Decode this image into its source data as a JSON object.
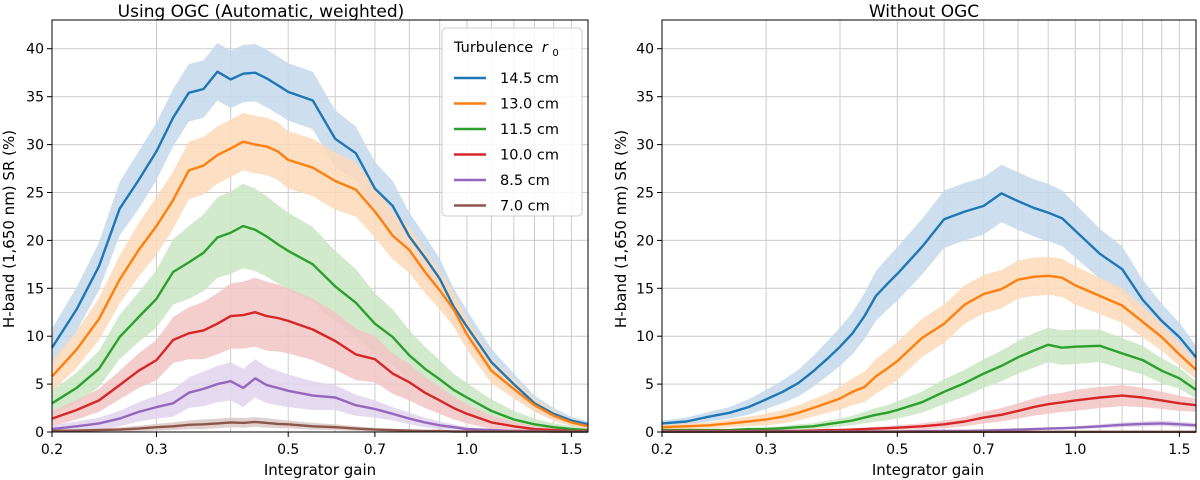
{
  "chart_data": [
    {
      "type": "line",
      "title": "Using OGC (Automatic, weighted)",
      "xlabel": "Integrator gain",
      "ylabel": "H-band (1,650 nm) SR (%)",
      "xscale": "log",
      "xlim": [
        0.2,
        1.6
      ],
      "ylim": [
        0,
        43
      ],
      "xticks": [
        0.2,
        0.3,
        0.5,
        0.7,
        1.0,
        1.5
      ],
      "xtick_labels": [
        "0.2",
        "0.3",
        "0.5",
        "0.7",
        "1.0",
        "1.5"
      ],
      "yticks": [
        0,
        5,
        10,
        15,
        20,
        25,
        30,
        35,
        40
      ],
      "ytick_labels": [
        "0",
        "5",
        "10",
        "15",
        "20",
        "25",
        "30",
        "35",
        "40"
      ],
      "grid": true,
      "shaded_band": "uncertainty range around each series",
      "legend": {
        "title": "Turbulence",
        "title_symbol": "r",
        "title_subscript": "0",
        "placement": "top-right"
      },
      "x": [
        0.2,
        0.22,
        0.24,
        0.26,
        0.28,
        0.3,
        0.32,
        0.34,
        0.36,
        0.38,
        0.4,
        0.42,
        0.44,
        0.46,
        0.48,
        0.5,
        0.55,
        0.6,
        0.65,
        0.7,
        0.75,
        0.8,
        0.85,
        0.9,
        0.95,
        1.0,
        1.1,
        1.2,
        1.3,
        1.4,
        1.5,
        1.6
      ],
      "series": [
        {
          "name": "14.5 cm",
          "color": "#1f77b4",
          "band_color": "#c4d9ec",
          "values": [
            8.8,
            12.8,
            17.3,
            23.3,
            26.3,
            29.3,
            32.8,
            35.4,
            35.8,
            37.6,
            36.8,
            37.4,
            37.5,
            36.9,
            36.2,
            35.5,
            34.6,
            30.6,
            29.1,
            25.4,
            23.6,
            20.4,
            18.2,
            16.0,
            13.1,
            11.0,
            7.3,
            5.0,
            3.0,
            1.9,
            1.2,
            0.8
          ],
          "spread": [
            2.0,
            2.3,
            2.5,
            2.8,
            3.0,
            3.0,
            3.0,
            3.0,
            3.0,
            3.0,
            3.0,
            3.0,
            3.0,
            3.0,
            3.0,
            3.0,
            3.0,
            3.0,
            2.8,
            2.8,
            2.6,
            2.5,
            2.3,
            2.1,
            1.9,
            1.7,
            1.4,
            1.1,
            0.8,
            0.6,
            0.4,
            0.3
          ]
        },
        {
          "name": "13.0 cm",
          "color": "#ff7f0e",
          "band_color": "#fdd9b8",
          "values": [
            5.8,
            8.6,
            11.8,
            15.9,
            19.0,
            21.5,
            24.2,
            27.3,
            27.8,
            28.9,
            29.6,
            30.3,
            30.0,
            29.8,
            29.3,
            28.4,
            27.6,
            26.2,
            25.3,
            23.0,
            20.5,
            19.0,
            16.7,
            14.8,
            12.8,
            10.2,
            6.4,
            4.5,
            2.8,
            1.7,
            1.0,
            0.6
          ],
          "spread": [
            1.6,
            1.9,
            2.2,
            2.5,
            2.8,
            3.0,
            3.0,
            3.0,
            3.0,
            3.0,
            3.0,
            3.0,
            3.0,
            3.0,
            3.0,
            3.0,
            3.0,
            3.0,
            2.8,
            2.7,
            2.5,
            2.4,
            2.2,
            2.0,
            1.8,
            1.6,
            1.3,
            1.0,
            0.7,
            0.5,
            0.4,
            0.3
          ]
        },
        {
          "name": "11.5 cm",
          "color": "#2ca02c",
          "band_color": "#c8e6c2",
          "values": [
            3.0,
            4.6,
            6.6,
            9.9,
            12.0,
            13.9,
            16.7,
            17.7,
            18.7,
            20.3,
            20.8,
            21.5,
            21.1,
            20.4,
            19.6,
            18.9,
            17.5,
            15.2,
            13.5,
            11.3,
            9.9,
            8.0,
            6.6,
            5.5,
            4.4,
            3.6,
            2.2,
            1.3,
            0.8,
            0.5,
            0.3,
            0.2
          ],
          "spread": [
            1.3,
            1.6,
            1.9,
            2.3,
            2.6,
            3.0,
            3.4,
            3.8,
            4.0,
            4.2,
            4.3,
            4.4,
            4.3,
            4.2,
            4.1,
            4.0,
            3.9,
            3.7,
            3.5,
            3.2,
            2.9,
            2.6,
            2.3,
            2.0,
            1.7,
            1.5,
            1.2,
            0.9,
            0.6,
            0.4,
            0.3,
            0.2
          ]
        },
        {
          "name": "10.0 cm",
          "color": "#d62728",
          "band_color": "#f2c4c4",
          "values": [
            1.4,
            2.3,
            3.3,
            4.9,
            6.4,
            7.5,
            9.6,
            10.3,
            10.6,
            11.3,
            12.1,
            12.2,
            12.5,
            12.1,
            11.9,
            11.6,
            10.7,
            9.5,
            8.1,
            7.6,
            6.1,
            5.2,
            4.1,
            3.3,
            2.5,
            1.9,
            1.0,
            0.6,
            0.3,
            0.2,
            0.1,
            0.1
          ],
          "spread": [
            0.8,
            1.0,
            1.2,
            1.5,
            1.8,
            2.1,
            2.4,
            2.7,
            3.0,
            3.2,
            3.4,
            3.5,
            3.6,
            3.6,
            3.5,
            3.4,
            3.2,
            3.0,
            2.7,
            2.4,
            2.1,
            1.9,
            1.6,
            1.4,
            1.2,
            1.0,
            0.7,
            0.5,
            0.3,
            0.2,
            0.1,
            0.1
          ]
        },
        {
          "name": "8.5 cm",
          "color": "#9467bd",
          "band_color": "#e0d3ec",
          "values": [
            0.3,
            0.6,
            0.9,
            1.4,
            2.1,
            2.6,
            3.0,
            4.1,
            4.5,
            5.0,
            5.3,
            4.6,
            5.6,
            4.9,
            4.6,
            4.3,
            3.8,
            3.6,
            2.8,
            2.4,
            1.9,
            1.4,
            1.0,
            0.7,
            0.5,
            0.3,
            0.2,
            0.1,
            0.1,
            0.05,
            0.05,
            0.05
          ],
          "spread": [
            0.4,
            0.5,
            0.6,
            0.8,
            1.0,
            1.2,
            1.4,
            1.6,
            1.8,
            1.9,
            2.0,
            2.0,
            2.0,
            1.9,
            1.8,
            1.7,
            1.5,
            1.3,
            1.1,
            0.9,
            0.7,
            0.6,
            0.5,
            0.4,
            0.3,
            0.2,
            0.1,
            0.1,
            0.05,
            0.05,
            0.05,
            0.05
          ]
        },
        {
          "name": "7.0 cm",
          "color": "#8c564b",
          "band_color": "#dcc9c5",
          "values": [
            0.1,
            0.15,
            0.2,
            0.25,
            0.35,
            0.5,
            0.6,
            0.75,
            0.8,
            0.9,
            1.0,
            0.95,
            1.05,
            0.95,
            0.85,
            0.8,
            0.6,
            0.5,
            0.35,
            0.25,
            0.2,
            0.15,
            0.1,
            0.1,
            0.05,
            0.05,
            0.05,
            0.05,
            0.05,
            0.05,
            0.05,
            0.05
          ],
          "spread": [
            0.1,
            0.15,
            0.2,
            0.25,
            0.3,
            0.35,
            0.4,
            0.45,
            0.5,
            0.5,
            0.5,
            0.5,
            0.5,
            0.5,
            0.45,
            0.4,
            0.35,
            0.3,
            0.25,
            0.2,
            0.15,
            0.1,
            0.1,
            0.1,
            0.05,
            0.05,
            0.05,
            0.05,
            0.05,
            0.05,
            0.05,
            0.05
          ]
        }
      ]
    },
    {
      "type": "line",
      "title": "Without OGC",
      "xlabel": "Integrator gain",
      "ylabel": "H-band (1,650 nm) SR (%)",
      "xscale": "log",
      "xlim": [
        0.2,
        1.6
      ],
      "ylim": [
        0,
        43
      ],
      "xticks": [
        0.2,
        0.3,
        0.5,
        0.7,
        1.0,
        1.5
      ],
      "xtick_labels": [
        "0.2",
        "0.3",
        "0.5",
        "0.7",
        "1.0",
        "1.5"
      ],
      "yticks": [
        0,
        5,
        10,
        15,
        20,
        25,
        30,
        35,
        40
      ],
      "ytick_labels": [
        "0",
        "5",
        "10",
        "15",
        "20",
        "25",
        "30",
        "35",
        "40"
      ],
      "grid": true,
      "shaded_band": "uncertainty range around each series",
      "x": [
        0.2,
        0.22,
        0.24,
        0.26,
        0.28,
        0.3,
        0.32,
        0.34,
        0.36,
        0.38,
        0.4,
        0.42,
        0.44,
        0.46,
        0.48,
        0.5,
        0.55,
        0.6,
        0.65,
        0.7,
        0.75,
        0.8,
        0.85,
        0.9,
        0.95,
        1.0,
        1.1,
        1.2,
        1.3,
        1.4,
        1.5,
        1.6
      ],
      "series": [
        {
          "name": "14.5 cm",
          "color": "#1f77b4",
          "band_color": "#c4d9ec",
          "values": [
            0.9,
            1.1,
            1.6,
            2.0,
            2.6,
            3.4,
            4.2,
            5.1,
            6.3,
            7.6,
            8.9,
            10.3,
            12.1,
            14.2,
            15.4,
            16.5,
            19.3,
            22.2,
            23.0,
            23.6,
            24.9,
            24.1,
            23.4,
            22.9,
            22.3,
            21.0,
            18.6,
            17.0,
            13.8,
            11.6,
            9.9,
            7.8
          ],
          "spread": [
            0.3,
            0.4,
            0.5,
            0.6,
            0.8,
            1.0,
            1.2,
            1.4,
            1.6,
            1.8,
            2.0,
            2.2,
            2.4,
            2.6,
            2.7,
            2.8,
            2.9,
            3.0,
            3.0,
            3.0,
            3.0,
            3.0,
            3.0,
            3.0,
            2.9,
            2.8,
            2.6,
            2.4,
            2.1,
            1.8,
            1.5,
            1.2
          ]
        },
        {
          "name": "13.0 cm",
          "color": "#ff7f0e",
          "band_color": "#fdd9b8",
          "values": [
            0.5,
            0.6,
            0.7,
            0.9,
            1.1,
            1.3,
            1.6,
            2.0,
            2.5,
            3.0,
            3.5,
            4.2,
            4.7,
            5.8,
            6.6,
            7.4,
            9.8,
            11.3,
            13.3,
            14.4,
            14.9,
            15.9,
            16.2,
            16.3,
            16.1,
            15.3,
            14.2,
            13.2,
            11.5,
            9.9,
            8.1,
            6.5
          ],
          "spread": [
            0.2,
            0.3,
            0.3,
            0.4,
            0.5,
            0.6,
            0.7,
            0.8,
            0.9,
            1.0,
            1.2,
            1.4,
            1.6,
            1.8,
            1.9,
            2.0,
            2.0,
            2.0,
            2.0,
            2.0,
            2.0,
            2.0,
            2.0,
            2.0,
            2.0,
            2.0,
            1.9,
            1.8,
            1.6,
            1.4,
            1.2,
            1.0
          ]
        },
        {
          "name": "11.5 cm",
          "color": "#2ca02c",
          "band_color": "#c8e6c2",
          "values": [
            0.2,
            0.2,
            0.2,
            0.2,
            0.3,
            0.3,
            0.4,
            0.5,
            0.6,
            0.8,
            1.0,
            1.2,
            1.5,
            1.8,
            2.0,
            2.3,
            3.1,
            4.2,
            5.1,
            6.1,
            6.9,
            7.8,
            8.5,
            9.1,
            8.8,
            8.9,
            9.0,
            8.2,
            7.5,
            6.4,
            5.6,
            4.4
          ],
          "spread": [
            0.1,
            0.1,
            0.1,
            0.1,
            0.1,
            0.2,
            0.2,
            0.3,
            0.3,
            0.4,
            0.4,
            0.5,
            0.6,
            0.7,
            0.8,
            0.9,
            1.1,
            1.3,
            1.4,
            1.5,
            1.6,
            1.7,
            1.8,
            1.8,
            1.8,
            1.8,
            1.7,
            1.6,
            1.5,
            1.3,
            1.1,
            0.9
          ]
        },
        {
          "name": "10.0 cm",
          "color": "#d62728",
          "band_color": "#f2c4c4",
          "values": [
            0.1,
            0.1,
            0.1,
            0.1,
            0.1,
            0.1,
            0.1,
            0.1,
            0.15,
            0.2,
            0.2,
            0.25,
            0.3,
            0.35,
            0.4,
            0.45,
            0.6,
            0.8,
            1.1,
            1.5,
            1.8,
            2.2,
            2.6,
            2.9,
            3.1,
            3.3,
            3.6,
            3.8,
            3.6,
            3.3,
            3.0,
            2.8
          ],
          "spread": [
            0.05,
            0.05,
            0.05,
            0.05,
            0.05,
            0.05,
            0.05,
            0.1,
            0.1,
            0.1,
            0.1,
            0.15,
            0.15,
            0.2,
            0.2,
            0.25,
            0.3,
            0.4,
            0.5,
            0.6,
            0.7,
            0.8,
            0.9,
            1.0,
            1.0,
            1.1,
            1.1,
            1.1,
            1.0,
            0.9,
            0.8,
            0.7
          ]
        },
        {
          "name": "8.5 cm",
          "color": "#9467bd",
          "band_color": "#e0d3ec",
          "values": [
            0.05,
            0.05,
            0.05,
            0.05,
            0.05,
            0.05,
            0.05,
            0.05,
            0.05,
            0.05,
            0.05,
            0.05,
            0.05,
            0.05,
            0.05,
            0.05,
            0.1,
            0.1,
            0.1,
            0.15,
            0.2,
            0.25,
            0.3,
            0.35,
            0.4,
            0.45,
            0.6,
            0.75,
            0.85,
            0.9,
            0.8,
            0.7
          ],
          "spread": [
            0.02,
            0.02,
            0.02,
            0.02,
            0.02,
            0.02,
            0.02,
            0.02,
            0.02,
            0.02,
            0.02,
            0.02,
            0.02,
            0.02,
            0.02,
            0.02,
            0.05,
            0.05,
            0.05,
            0.05,
            0.08,
            0.1,
            0.1,
            0.12,
            0.14,
            0.15,
            0.2,
            0.25,
            0.28,
            0.3,
            0.28,
            0.25
          ]
        },
        {
          "name": "7.0 cm",
          "color": "#8c564b",
          "band_color": "#dcc9c5",
          "values": [
            0.02,
            0.02,
            0.02,
            0.02,
            0.02,
            0.02,
            0.02,
            0.02,
            0.02,
            0.02,
            0.02,
            0.02,
            0.02,
            0.02,
            0.02,
            0.02,
            0.02,
            0.02,
            0.02,
            0.02,
            0.02,
            0.02,
            0.02,
            0.02,
            0.02,
            0.02,
            0.02,
            0.02,
            0.02,
            0.02,
            0.02,
            0.02
          ],
          "spread": [
            0.01,
            0.01,
            0.01,
            0.01,
            0.01,
            0.01,
            0.01,
            0.01,
            0.01,
            0.01,
            0.01,
            0.01,
            0.01,
            0.01,
            0.01,
            0.01,
            0.01,
            0.01,
            0.01,
            0.01,
            0.01,
            0.01,
            0.01,
            0.01,
            0.01,
            0.01,
            0.01,
            0.01,
            0.01,
            0.01,
            0.01,
            0.01
          ]
        }
      ]
    }
  ]
}
